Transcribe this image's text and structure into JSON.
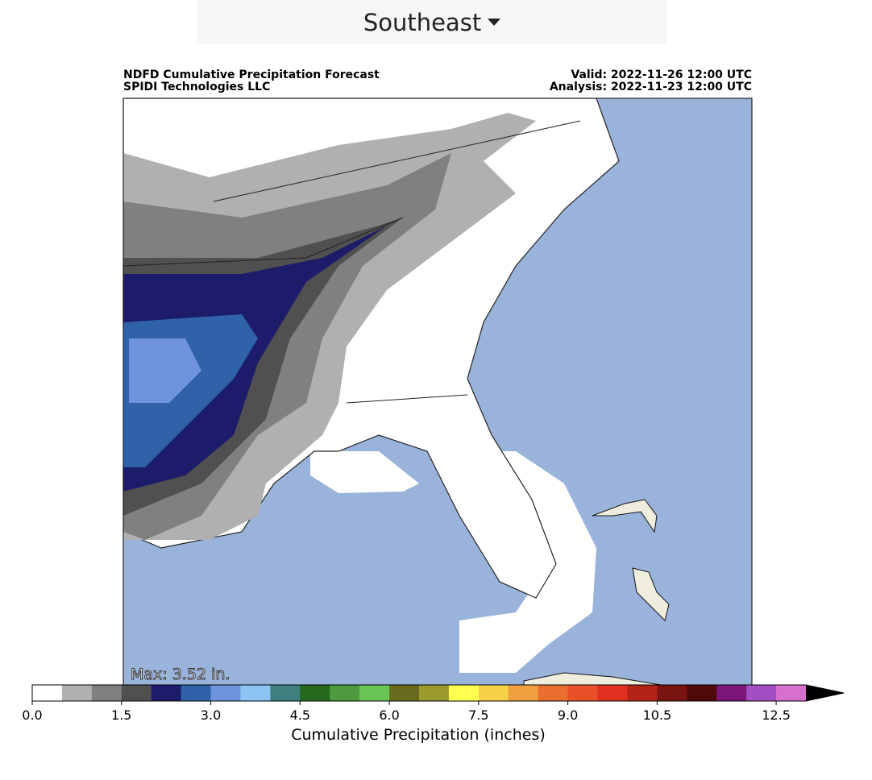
{
  "region_selector": {
    "label": "Southeast"
  },
  "map": {
    "title": "NDFD Cumulative Precipitation Forecast",
    "credit": "SPIDI Technologies LLC",
    "valid": "Valid: 2022-11-26 12:00 UTC",
    "analysis": "Analysis: 2022-11-23 12:00 UTC",
    "max_label": "Max: 3.52 in."
  },
  "colorbar": {
    "label": "Cumulative Precipitation (inches)",
    "lim": [
      0,
      13
    ],
    "ticks": [
      {
        "value": 0,
        "label": "0.0"
      },
      {
        "value": 1.5,
        "label": "1.5"
      },
      {
        "value": 3,
        "label": "3.0"
      },
      {
        "value": 4.5,
        "label": "4.5"
      },
      {
        "value": 6,
        "label": "6.0"
      },
      {
        "value": 7.5,
        "label": "7.5"
      },
      {
        "value": 9,
        "label": "9.0"
      },
      {
        "value": 10.5,
        "label": "10.5"
      },
      {
        "value": 12.5,
        "label": "12.5"
      }
    ],
    "colors": [
      "#ffffff",
      "#b0b0b0",
      "#808080",
      "#505050",
      "#1c1c6a",
      "#2f62a8",
      "#7094dc",
      "#8cc4f4",
      "#3e7f7f",
      "#256a1c",
      "#4f9a3e",
      "#6ac654",
      "#6a6a1e",
      "#9b9a2e",
      "#ffff50",
      "#f6d24a",
      "#f0a03c",
      "#ea6e2e",
      "#e85028",
      "#e03020",
      "#b22418",
      "#7a1410",
      "#4e0a08",
      "#7a167a",
      "#a44ec4",
      "#d670cc"
    ],
    "extend_color": "#000000"
  }
}
